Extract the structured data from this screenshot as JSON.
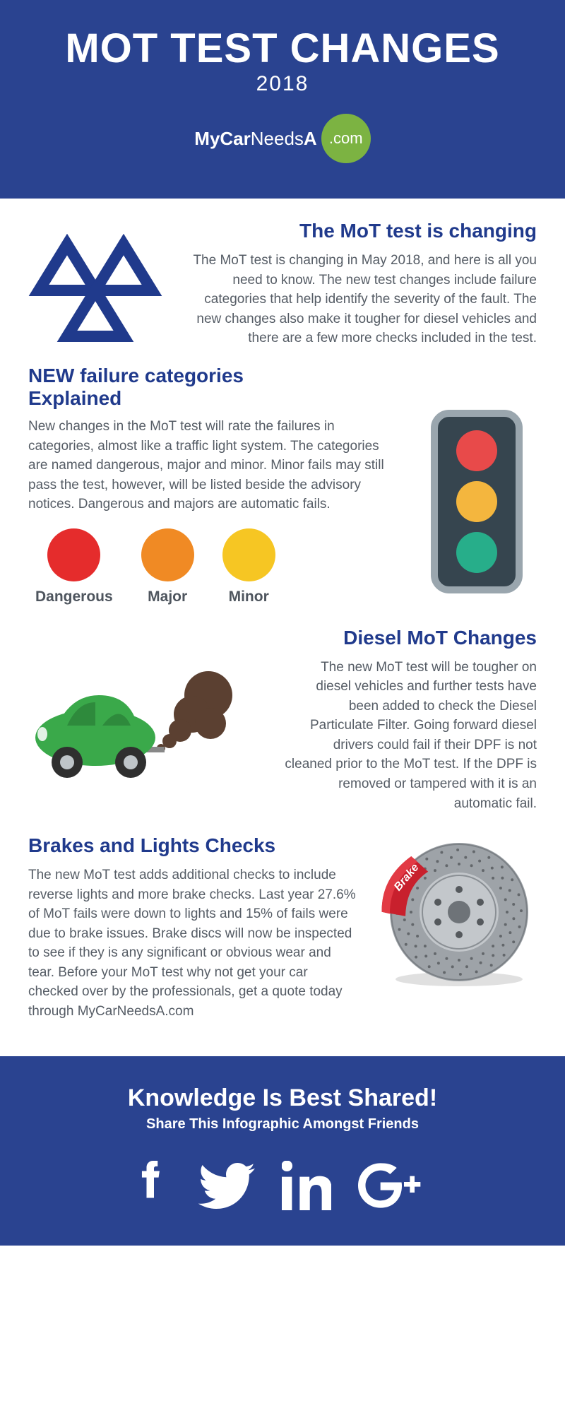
{
  "header": {
    "title": "MOT TEST CHANGES",
    "year": "2018",
    "logo_my": "My",
    "logo_car": "Car",
    "logo_needs": "Needs",
    "logo_a": "A",
    "logo_dotcom": ".com"
  },
  "colors": {
    "primary": "#2a4390",
    "heading": "#203a8c",
    "body_text": "#555c65",
    "label_text": "#4e555e",
    "logo_green": "#7cb342",
    "dangerous": "#e52c2c",
    "major": "#f08a24",
    "minor": "#f6c623",
    "traffic_body": "#36454f",
    "traffic_border": "#9aa6ae",
    "tl_red": "#e84a4a",
    "tl_amber": "#f4b63e",
    "tl_green": "#27ae8a",
    "car_body": "#3aa94a",
    "car_dark": "#2e8a3c",
    "smoke": "#5b4031",
    "disc": "#9ea3a8",
    "disc_inner": "#c3c7cb",
    "caliper": "#c8202d"
  },
  "section1": {
    "title": "The MoT test is changing",
    "body": "The  MoT test is changing in May 2018, and here is all you need to know. The new test changes include failure categories that help identify the severity of the fault. The new changes also make it tougher for diesel vehicles and there are a few more checks included in the test."
  },
  "section2": {
    "title_line1": "NEW failure categories",
    "title_line2": "Explained",
    "body": "New changes in the MoT test will rate the failures in categories, almost like a traffic light system. The categories are named dangerous, major and minor. Minor fails may still pass the test, however, will be listed beside the advisory notices. Dangerous and majors are automatic fails.",
    "categories": [
      {
        "label": "Dangerous",
        "color_key": "dangerous"
      },
      {
        "label": "Major",
        "color_key": "major"
      },
      {
        "label": "Minor",
        "color_key": "minor"
      }
    ]
  },
  "section3": {
    "title": "Diesel MoT Changes",
    "body": "The new MoT test will be tougher on diesel vehicles and further tests have been added to check the Diesel Particulate Filter.  Going forward diesel drivers could fail if their DPF is not cleaned prior to the MoT test. If the DPF is removed or tampered with it is an automatic fail."
  },
  "section4": {
    "title": "Brakes and Lights Checks",
    "body": "The new MoT test adds additional checks to include reverse lights and more brake checks. Last year 27.6% of MoT fails were down to lights and 15% of fails were due to brake issues.  Brake discs will now be inspected to see if they is any significant or obvious wear and tear. Before your MoT test why not get your car checked over by the professionals, get a quote today through MyCarNeedsA.com",
    "caliper_label": "Brake"
  },
  "footer": {
    "heading": "Knowledge Is Best Shared!",
    "sub": "Share This Infographic Amongst Friends"
  }
}
